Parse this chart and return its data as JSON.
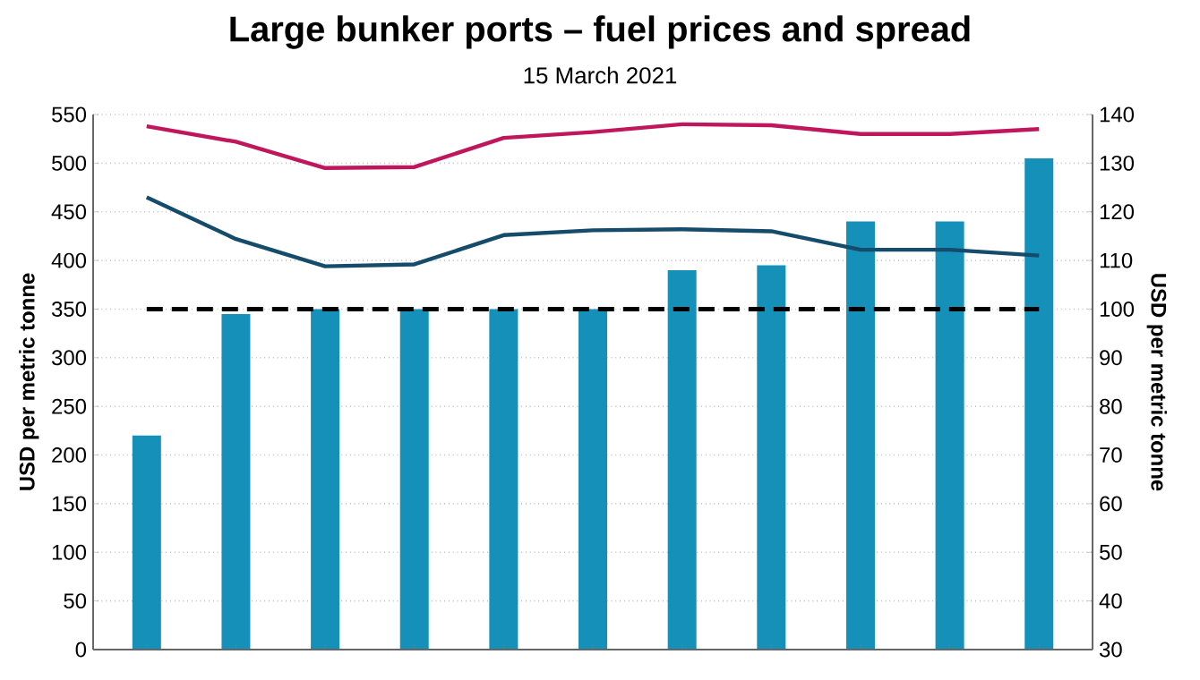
{
  "chart_data": {
    "type": "bar",
    "title": "Large bunker ports – fuel prices and spread",
    "subtitle": "15 March 2021",
    "ylabel": "USD per metric tonne",
    "y2label": "USD per metric tonne",
    "categories": [
      null,
      null,
      null,
      null,
      null,
      null,
      null,
      null,
      null,
      null,
      null
    ],
    "series": [
      {
        "axis": "y2",
        "color": "#1590b8",
        "values": [
          74,
          99,
          100,
          100,
          100,
          100,
          108,
          109,
          118,
          118,
          131
        ]
      },
      {
        "type": "line",
        "color": "#c0175c",
        "values": [
          538,
          522,
          495,
          496,
          526,
          532,
          540,
          539,
          530,
          530,
          535
        ]
      },
      {
        "type": "line",
        "color": "#154b6b",
        "values": [
          465,
          422,
          394,
          396,
          426,
          431,
          432,
          430,
          411,
          411,
          405
        ]
      }
    ],
    "ylim": [
      0,
      550
    ],
    "yticks": [
      0,
      50,
      100,
      150,
      200,
      250,
      300,
      350,
      400,
      450,
      500,
      550
    ],
    "y2lim": [
      30,
      140
    ],
    "y2ticks": [
      30,
      40,
      50,
      60,
      70,
      80,
      90,
      100,
      110,
      120,
      130,
      140
    ],
    "ref_lines": [
      {
        "axis": "y2",
        "value": 100,
        "color": "#000000",
        "line_style": "dashed"
      }
    ],
    "grid": "y",
    "marker": "none",
    "line_style": "solid"
  }
}
